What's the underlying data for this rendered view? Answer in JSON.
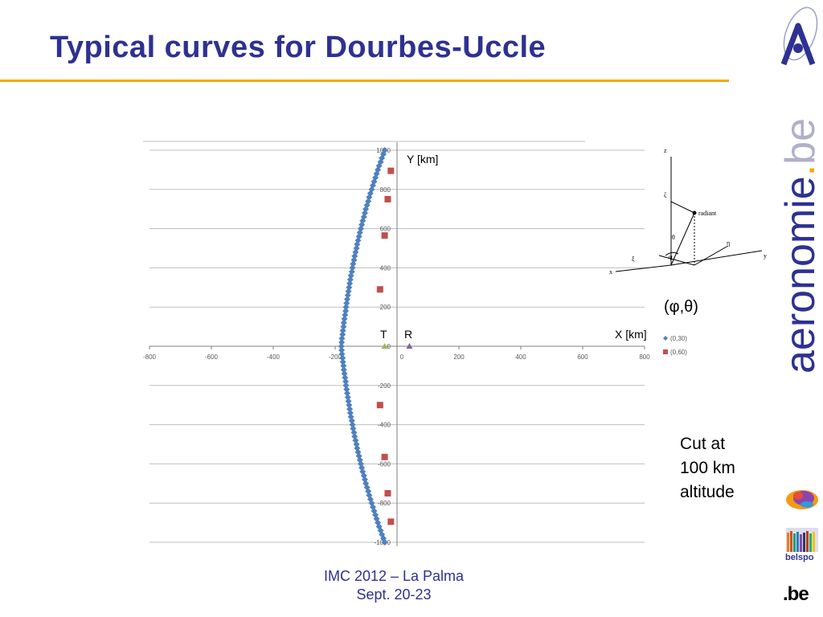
{
  "title": "Typical curves for Dourbes-Uccle",
  "footer": {
    "line1": "IMC 2012 – La Palma",
    "line2": "Sept. 20-23"
  },
  "colors": {
    "title": "#2e3192",
    "rule": "#f5a800",
    "series_a": "#4f81bd",
    "series_b": "#c0504d",
    "receiver": "#8064a2",
    "transmitter": "#9bbb59"
  },
  "annotations": {
    "y_label": "Y [km]",
    "x_label": "X [km]",
    "transmitter": "T",
    "receiver": "R",
    "angles": "(φ,θ)",
    "cut_lines": [
      "Cut at",
      "100 km",
      "altitude"
    ]
  },
  "diagram": {
    "labels": [
      "z",
      "ζ",
      "radiant",
      "θ",
      "η",
      "y",
      "ξ",
      "φ",
      "x"
    ]
  },
  "logos": {
    "brand_main": "aeronomie",
    "brand_dot": ".",
    "brand_tld": "be",
    "belspo": "belspo",
    "be": ".be"
  },
  "chart_data": {
    "type": "scatter",
    "xlim": [
      -800,
      800
    ],
    "ylim": [
      -1000,
      1000
    ],
    "x_ticks": [
      -800,
      -600,
      -400,
      -200,
      0,
      200,
      400,
      600,
      800
    ],
    "y_ticks": [
      -1000,
      -800,
      -600,
      -400,
      -200,
      0,
      200,
      400,
      600,
      800,
      1000
    ],
    "grid": true,
    "legend_position": "right",
    "series": [
      {
        "name": "(0,30)",
        "marker": "diamond",
        "points": [
          [
            -40,
            1000
          ],
          [
            -44,
            980
          ],
          [
            -49,
            960
          ],
          [
            -53,
            940
          ],
          [
            -58,
            920
          ],
          [
            -62,
            900
          ],
          [
            -66,
            880
          ],
          [
            -70,
            860
          ],
          [
            -74,
            840
          ],
          [
            -78,
            820
          ],
          [
            -82,
            800
          ],
          [
            -86,
            780
          ],
          [
            -90,
            760
          ],
          [
            -93,
            740
          ],
          [
            -97,
            720
          ],
          [
            -101,
            700
          ],
          [
            -104,
            680
          ],
          [
            -107,
            660
          ],
          [
            -111,
            640
          ],
          [
            -114,
            620
          ],
          [
            -117,
            600
          ],
          [
            -120,
            580
          ],
          [
            -123,
            560
          ],
          [
            -126,
            540
          ],
          [
            -129,
            520
          ],
          [
            -131,
            500
          ],
          [
            -134,
            480
          ],
          [
            -137,
            460
          ],
          [
            -139,
            440
          ],
          [
            -142,
            420
          ],
          [
            -144,
            400
          ],
          [
            -146,
            380
          ],
          [
            -149,
            360
          ],
          [
            -151,
            340
          ],
          [
            -153,
            320
          ],
          [
            -155,
            300
          ],
          [
            -157,
            280
          ],
          [
            -159,
            260
          ],
          [
            -161,
            240
          ],
          [
            -163,
            220
          ],
          [
            -165,
            200
          ],
          [
            -166,
            180
          ],
          [
            -168,
            160
          ],
          [
            -170,
            140
          ],
          [
            -172,
            120
          ],
          [
            -173,
            100
          ],
          [
            -175,
            80
          ],
          [
            -176,
            60
          ],
          [
            -178,
            40
          ],
          [
            -179,
            20
          ],
          [
            -180,
            0
          ],
          [
            -179,
            -20
          ],
          [
            -178,
            -40
          ],
          [
            -176,
            -60
          ],
          [
            -175,
            -80
          ],
          [
            -173,
            -100
          ],
          [
            -172,
            -120
          ],
          [
            -170,
            -140
          ],
          [
            -168,
            -160
          ],
          [
            -166,
            -180
          ],
          [
            -165,
            -200
          ],
          [
            -163,
            -220
          ],
          [
            -161,
            -240
          ],
          [
            -159,
            -260
          ],
          [
            -157,
            -280
          ],
          [
            -155,
            -300
          ],
          [
            -153,
            -320
          ],
          [
            -151,
            -340
          ],
          [
            -149,
            -360
          ],
          [
            -146,
            -380
          ],
          [
            -144,
            -400
          ],
          [
            -142,
            -420
          ],
          [
            -139,
            -440
          ],
          [
            -137,
            -460
          ],
          [
            -134,
            -480
          ],
          [
            -131,
            -500
          ],
          [
            -129,
            -520
          ],
          [
            -126,
            -540
          ],
          [
            -123,
            -560
          ],
          [
            -120,
            -580
          ],
          [
            -117,
            -600
          ],
          [
            -114,
            -620
          ],
          [
            -111,
            -640
          ],
          [
            -107,
            -660
          ],
          [
            -104,
            -680
          ],
          [
            -101,
            -700
          ],
          [
            -97,
            -720
          ],
          [
            -93,
            -740
          ],
          [
            -90,
            -760
          ],
          [
            -86,
            -780
          ],
          [
            -82,
            -800
          ],
          [
            -78,
            -820
          ],
          [
            -74,
            -840
          ],
          [
            -70,
            -860
          ],
          [
            -66,
            -880
          ],
          [
            -62,
            -900
          ],
          [
            -58,
            -920
          ],
          [
            -53,
            -940
          ],
          [
            -49,
            -960
          ],
          [
            -44,
            -980
          ],
          [
            -40,
            -1000
          ]
        ]
      },
      {
        "name": "(0,60)",
        "marker": "square",
        "points": [
          [
            -20,
            895
          ],
          [
            -30,
            750
          ],
          [
            -40,
            565
          ],
          [
            -55,
            290
          ],
          [
            -55,
            -300
          ],
          [
            -40,
            -565
          ],
          [
            -30,
            -750
          ],
          [
            -20,
            -895
          ]
        ]
      }
    ],
    "stations": [
      {
        "label": "T",
        "x": -40,
        "y": 0,
        "marker": "triangle"
      },
      {
        "label": "R",
        "x": 40,
        "y": 0,
        "marker": "triangle"
      }
    ]
  }
}
